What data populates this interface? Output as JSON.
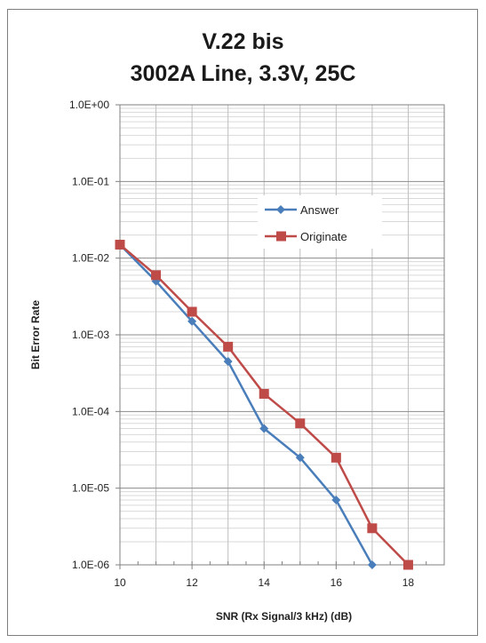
{
  "chart_data": {
    "type": "line",
    "title": [
      "V.22 bis",
      "3002A Line, 3.3V, 25C"
    ],
    "xlabel": "SNR (Rx Signal/3 kHz) (dB)",
    "ylabel": "Bit Error Rate",
    "xlim": [
      10,
      19
    ],
    "ylim": [
      1e-06,
      1
    ],
    "yscale": "log",
    "x_ticks": [
      10,
      12,
      14,
      16,
      18
    ],
    "y_ticks": [
      "1.0E+00",
      "1.0E-01",
      "1.0E-02",
      "1.0E-03",
      "1.0E-04",
      "1.0E-05",
      "1.0E-06"
    ],
    "grid": true,
    "legend_position": "upper-right",
    "series": [
      {
        "name": "Answer",
        "color": "#4a7ebb",
        "marker": "diamond",
        "x": [
          10,
          11,
          12,
          13,
          14,
          15,
          16,
          17
        ],
        "y": [
          0.015,
          0.005,
          0.0015,
          0.00045,
          6e-05,
          2.5e-05,
          7e-06,
          1e-06
        ]
      },
      {
        "name": "Originate",
        "color": "#be4b48",
        "marker": "square",
        "x": [
          10,
          11,
          12,
          13,
          14,
          15,
          16,
          17,
          18
        ],
        "y": [
          0.015,
          0.006,
          0.002,
          0.0007,
          0.00017,
          7e-05,
          2.5e-05,
          3e-06,
          1e-06
        ]
      }
    ]
  }
}
